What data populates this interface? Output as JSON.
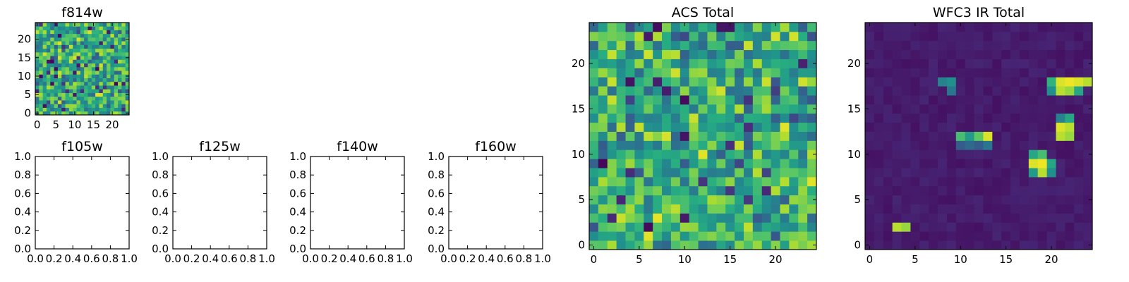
{
  "chart_data": [
    {
      "type": "heatmap",
      "title": "f814w",
      "xlabel": "",
      "ylabel": "",
      "grid_size": 25,
      "xlim": [
        -0.5,
        24.5
      ],
      "ylim": [
        -0.5,
        24.5
      ],
      "xticks": [
        0,
        5,
        10,
        15,
        20
      ],
      "yticks": [
        0,
        5,
        10,
        15,
        20
      ],
      "colormap": "viridis",
      "pattern": "noise",
      "seed": 814
    },
    {
      "type": "empty",
      "title": "f105w",
      "xlim": [
        0.0,
        1.0
      ],
      "ylim": [
        0.0,
        1.0
      ],
      "xticks": [
        "0.0",
        "0.2",
        "0.4",
        "0.6",
        "0.8",
        "1.0"
      ],
      "yticks": [
        "0.0",
        "0.2",
        "0.4",
        "0.6",
        "0.8",
        "1.0"
      ]
    },
    {
      "type": "empty",
      "title": "f125w",
      "xlim": [
        0.0,
        1.0
      ],
      "ylim": [
        0.0,
        1.0
      ],
      "xticks": [
        "0.0",
        "0.2",
        "0.4",
        "0.6",
        "0.8",
        "1.0"
      ],
      "yticks": [
        "0.0",
        "0.2",
        "0.4",
        "0.6",
        "0.8",
        "1.0"
      ]
    },
    {
      "type": "empty",
      "title": "f140w",
      "xlim": [
        0.0,
        1.0
      ],
      "ylim": [
        0.0,
        1.0
      ],
      "xticks": [
        "0.0",
        "0.2",
        "0.4",
        "0.6",
        "0.8",
        "1.0"
      ],
      "yticks": [
        "0.0",
        "0.2",
        "0.4",
        "0.6",
        "0.8",
        "1.0"
      ]
    },
    {
      "type": "empty",
      "title": "f160w",
      "xlim": [
        0.0,
        1.0
      ],
      "ylim": [
        0.0,
        1.0
      ],
      "xticks": [
        "0.0",
        "0.2",
        "0.4",
        "0.6",
        "0.8",
        "1.0"
      ],
      "yticks": [
        "0.0",
        "0.2",
        "0.4",
        "0.6",
        "0.8",
        "1.0"
      ]
    },
    {
      "type": "heatmap",
      "title": "ACS Total",
      "grid_size": 25,
      "xlim": [
        -0.5,
        24.5
      ],
      "ylim": [
        -0.5,
        24.5
      ],
      "xticks": [
        0,
        5,
        10,
        15,
        20
      ],
      "yticks": [
        0,
        5,
        10,
        15,
        20
      ],
      "colormap": "viridis",
      "pattern": "noise",
      "seed": 4242
    },
    {
      "type": "heatmap",
      "title": "WFC3 IR Total",
      "grid_size": 25,
      "xlim": [
        -0.5,
        24.5
      ],
      "ylim": [
        -0.5,
        24.5
      ],
      "xticks": [
        0,
        5,
        10,
        15,
        20
      ],
      "yticks": [
        0,
        5,
        10,
        15,
        20
      ],
      "colormap": "viridis",
      "pattern": "sources",
      "seed": 303,
      "background_level": 0.08,
      "sources": [
        {
          "x": 3,
          "y": 2,
          "cells": [
            [
              3,
              2,
              0.9
            ],
            [
              4,
              2,
              0.85
            ]
          ]
        },
        {
          "x": 8,
          "y": 18,
          "cells": [
            [
              8,
              18,
              0.45
            ],
            [
              9,
              18,
              0.5
            ],
            [
              9,
              17,
              0.4
            ]
          ]
        },
        {
          "x": 11,
          "y": 12,
          "cells": [
            [
              10,
              12,
              0.7
            ],
            [
              11,
              12,
              0.55
            ],
            [
              12,
              12,
              0.75
            ],
            [
              13,
              12,
              0.95
            ],
            [
              10,
              11,
              0.3
            ],
            [
              11,
              11,
              0.35
            ],
            [
              12,
              11,
              0.3
            ],
            [
              13,
              11,
              0.4
            ]
          ]
        },
        {
          "x": 22,
          "y": 18,
          "cells": [
            [
              20,
              18,
              0.65
            ],
            [
              21,
              18,
              0.95
            ],
            [
              22,
              18,
              0.98
            ],
            [
              23,
              18,
              0.95
            ],
            [
              24,
              18,
              0.9
            ],
            [
              20,
              17,
              0.5
            ],
            [
              21,
              17,
              0.9
            ],
            [
              22,
              17,
              0.85
            ],
            [
              23,
              17,
              0.6
            ]
          ]
        },
        {
          "x": 22,
          "y": 14,
          "cells": [
            [
              21,
              14,
              0.45
            ],
            [
              22,
              14,
              0.6
            ],
            [
              21,
              13,
              0.95
            ],
            [
              22,
              13,
              0.9
            ],
            [
              21,
              12,
              0.9
            ],
            [
              22,
              12,
              0.85
            ]
          ]
        },
        {
          "x": 18,
          "y": 9,
          "cells": [
            [
              18,
              10,
              0.6
            ],
            [
              19,
              10,
              0.7
            ],
            [
              18,
              9,
              0.95
            ],
            [
              19,
              9,
              0.98
            ],
            [
              20,
              9,
              0.6
            ],
            [
              18,
              8,
              0.55
            ],
            [
              19,
              8,
              0.9
            ],
            [
              20,
              8,
              0.5
            ]
          ]
        }
      ]
    }
  ]
}
